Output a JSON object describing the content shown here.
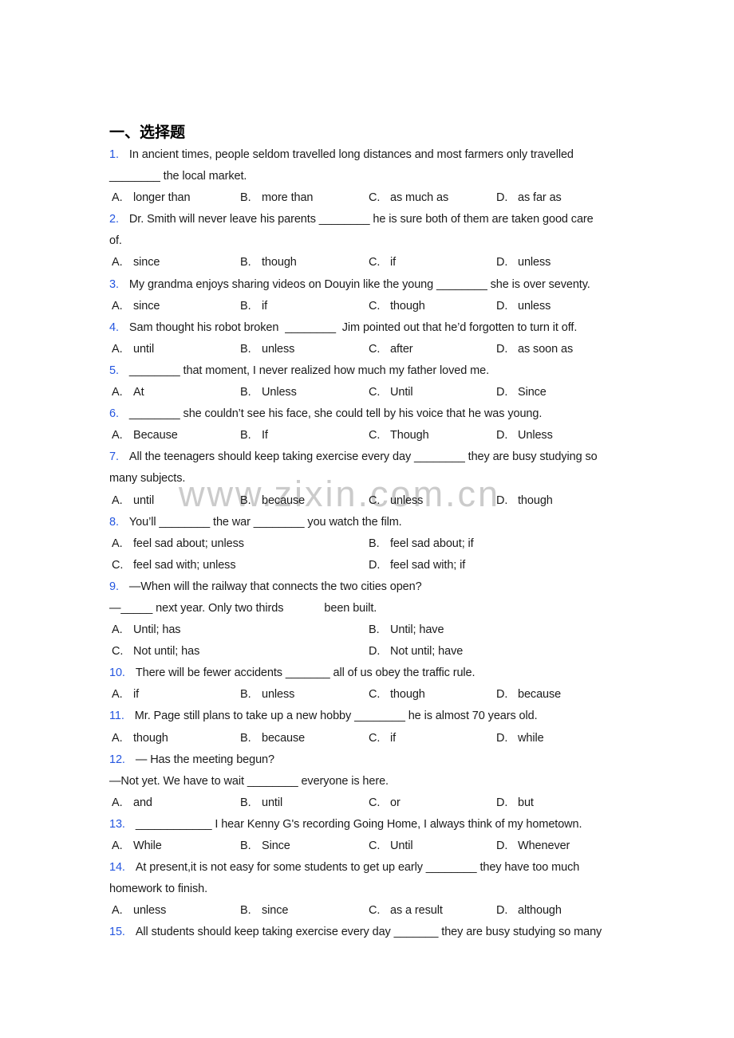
{
  "document": {
    "section_title": "一、选择题",
    "watermark": "www.zixin.com.cn"
  },
  "colors": {
    "question_number_blue": "#2456e0",
    "body_text": "#1b1b1b",
    "watermark_gray": "#cbcbcb",
    "page_background": "#ffffff"
  },
  "questions": [
    {
      "number": "1.",
      "lines": [
        "In ancient times, people seldom travelled long distances and most farmers only travelled",
        "________ the local market."
      ],
      "options_layout": "4col",
      "options": [
        {
          "label": "A.",
          "text": "longer than"
        },
        {
          "label": "B.",
          "text": "more than"
        },
        {
          "label": "C.",
          "text": "as much as"
        },
        {
          "label": "D.",
          "text": "as far as"
        }
      ]
    },
    {
      "number": "2.",
      "lines": [
        "Dr. Smith will never leave his parents ________ he is sure both of them are taken good care",
        "of."
      ],
      "options_layout": "4col",
      "options": [
        {
          "label": "A.",
          "text": "since"
        },
        {
          "label": "B.",
          "text": "though"
        },
        {
          "label": "C.",
          "text": "if"
        },
        {
          "label": "D.",
          "text": "unless"
        }
      ]
    },
    {
      "number": "3.",
      "lines": [
        "My grandma enjoys sharing videos on Douyin like the young ________ she is over seventy."
      ],
      "options_layout": "4col",
      "options": [
        {
          "label": "A.",
          "text": "since"
        },
        {
          "label": "B.",
          "text": "if"
        },
        {
          "label": "C.",
          "text": "though"
        },
        {
          "label": "D.",
          "text": "unless"
        }
      ]
    },
    {
      "number": "4.",
      "lines": [
        "Sam thought his robot broken  ________  Jim pointed out that he’d forgotten to turn it off."
      ],
      "options_layout": "4col",
      "options": [
        {
          "label": "A.",
          "text": "until"
        },
        {
          "label": "B.",
          "text": "unless"
        },
        {
          "label": "C.",
          "text": "after"
        },
        {
          "label": "D.",
          "text": "as soon as"
        }
      ]
    },
    {
      "number": "5.",
      "lines": [
        "________ that moment, I never realized how much my father loved me."
      ],
      "options_layout": "4col",
      "options": [
        {
          "label": "A.",
          "text": "At"
        },
        {
          "label": "B.",
          "text": "Unless"
        },
        {
          "label": "C.",
          "text": "Until"
        },
        {
          "label": "D.",
          "text": "Since"
        }
      ]
    },
    {
      "number": "6.",
      "lines": [
        "________ she couldn’t see his face, she could tell by his voice that he was young."
      ],
      "options_layout": "4col",
      "options": [
        {
          "label": "A.",
          "text": "Because"
        },
        {
          "label": "B.",
          "text": "If"
        },
        {
          "label": "C.",
          "text": "Though"
        },
        {
          "label": "D.",
          "text": "Unless"
        }
      ]
    },
    {
      "number": "7.",
      "lines": [
        "All the teenagers should keep taking exercise every day ________ they are busy studying so",
        "many subjects."
      ],
      "options_layout": "4col",
      "options": [
        {
          "label": "A.",
          "text": "until"
        },
        {
          "label": "B.",
          "text": "because"
        },
        {
          "label": "C.",
          "text": "unless"
        },
        {
          "label": "D.",
          "text": "though"
        }
      ]
    },
    {
      "number": "8.",
      "lines": [
        "You’ll ________ the war ________ you watch the film."
      ],
      "options_layout": "2col",
      "options": [
        {
          "label": "A.",
          "text": "feel sad about; unless"
        },
        {
          "label": "B.",
          "text": "feel sad about; if"
        },
        {
          "label": "C.",
          "text": "feel sad with; unless"
        },
        {
          "label": "D.",
          "text": "feel sad with; if"
        }
      ]
    },
    {
      "number": "9.",
      "lines": [
        "—When will the railway that connects the two cities open?",
        "—_____ next year. Only two thirds             been built."
      ],
      "options_layout": "2col",
      "options": [
        {
          "label": "A.",
          "text": "Until; has"
        },
        {
          "label": "B.",
          "text": "Until; have"
        },
        {
          "label": "C.",
          "text": "Not until; has"
        },
        {
          "label": "D.",
          "text": "Not until; have"
        }
      ]
    },
    {
      "number": "10.",
      "lines": [
        "There will be fewer accidents _______ all of us obey the traffic rule."
      ],
      "options_layout": "4col",
      "options": [
        {
          "label": "A.",
          "text": "if"
        },
        {
          "label": "B.",
          "text": "unless"
        },
        {
          "label": "C.",
          "text": "though"
        },
        {
          "label": "D.",
          "text": "because"
        }
      ]
    },
    {
      "number": "11.",
      "lines": [
        "Mr. Page still plans to take up a new hobby ________ he is almost 70 years old."
      ],
      "options_layout": "4col",
      "options": [
        {
          "label": "A.",
          "text": "though"
        },
        {
          "label": "B.",
          "text": "because"
        },
        {
          "label": "C.",
          "text": "if"
        },
        {
          "label": "D.",
          "text": "while"
        }
      ]
    },
    {
      "number": "12.",
      "lines": [
        "— Has the meeting begun?",
        "—Not yet. We have to wait ________ everyone is here."
      ],
      "options_layout": "4col",
      "options": [
        {
          "label": "A.",
          "text": "and"
        },
        {
          "label": "B.",
          "text": "until"
        },
        {
          "label": "C.",
          "text": "or"
        },
        {
          "label": "D.",
          "text": "but"
        }
      ]
    },
    {
      "number": "13.",
      "lines": [
        "____________ I hear Kenny G's recording Going Home, I always think of my hometown."
      ],
      "options_layout": "4col",
      "options": [
        {
          "label": "A.",
          "text": "While"
        },
        {
          "label": "B.",
          "text": "Since"
        },
        {
          "label": "C.",
          "text": "Until"
        },
        {
          "label": "D.",
          "text": "Whenever"
        }
      ]
    },
    {
      "number": "14.",
      "lines": [
        "At present,it is not easy for some students to get up early ________ they have too much",
        "homework to finish."
      ],
      "options_layout": "4col",
      "options": [
        {
          "label": "A.",
          "text": "unless"
        },
        {
          "label": "B.",
          "text": "since"
        },
        {
          "label": "C.",
          "text": "as a result"
        },
        {
          "label": "D.",
          "text": "although"
        }
      ]
    },
    {
      "number": "15.",
      "lines": [
        "All students should keep taking exercise every day _______ they are busy studying so many"
      ],
      "options_layout": "4col",
      "options": []
    }
  ]
}
